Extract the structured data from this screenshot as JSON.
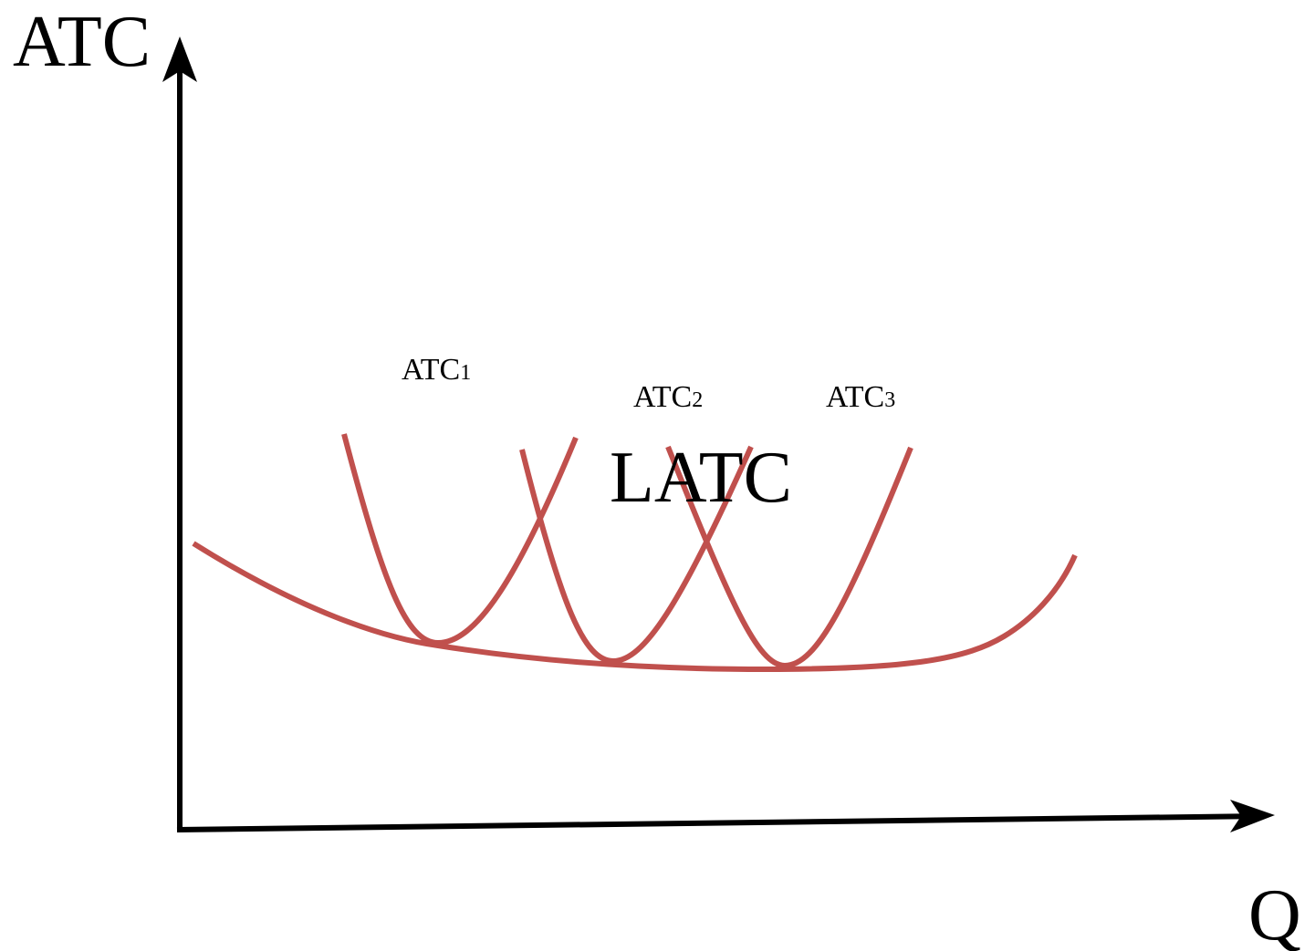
{
  "axes": {
    "y_label": "ATC",
    "x_label": "Q"
  },
  "curves": {
    "latc_label": "LATC",
    "short_run": [
      {
        "main": "ATC",
        "sub": "1"
      },
      {
        "main": "ATC",
        "sub": "2"
      },
      {
        "main": "ATC",
        "sub": "3"
      }
    ]
  },
  "colors": {
    "curve": "#c0504d",
    "axis": "#000000",
    "background": "#ffffff"
  }
}
